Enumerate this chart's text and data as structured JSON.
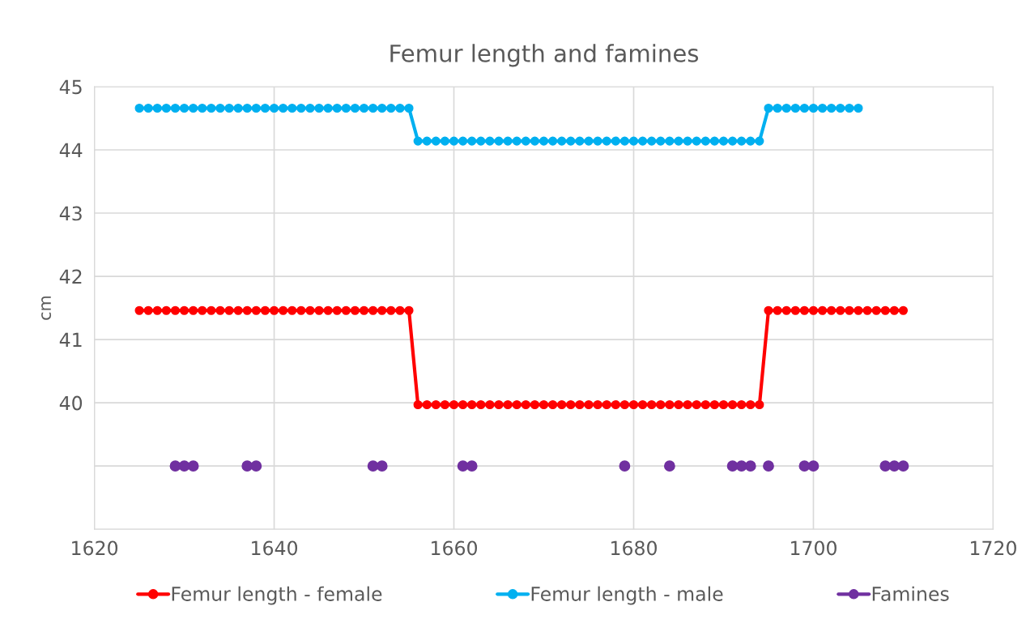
{
  "chart_data": {
    "type": "line",
    "title": "Femur length and famines",
    "ylabel": "cm",
    "xlim": [
      1620,
      1720
    ],
    "xticks": [
      1620,
      1640,
      1660,
      1680,
      1700,
      1720
    ],
    "ylim": [
      38,
      45
    ],
    "yticks": [
      {
        "value": 38,
        "label": null
      },
      {
        "value": 39,
        "label": null
      },
      40,
      41,
      42,
      43,
      44,
      45
    ],
    "grid": true,
    "legend": "bottom",
    "marker": "circle",
    "series": [
      {
        "name": "Femur length - female",
        "color": "#ff0000",
        "x": [
          1625,
          1626,
          1627,
          1628,
          1629,
          1630,
          1631,
          1632,
          1633,
          1634,
          1635,
          1636,
          1637,
          1638,
          1639,
          1640,
          1641,
          1642,
          1643,
          1644,
          1645,
          1646,
          1647,
          1648,
          1649,
          1650,
          1651,
          1652,
          1653,
          1654,
          1655,
          1656,
          1657,
          1658,
          1659,
          1660,
          1661,
          1662,
          1663,
          1664,
          1665,
          1666,
          1667,
          1668,
          1669,
          1670,
          1671,
          1672,
          1673,
          1674,
          1675,
          1676,
          1677,
          1678,
          1679,
          1680,
          1681,
          1682,
          1683,
          1684,
          1685,
          1686,
          1687,
          1688,
          1689,
          1690,
          1691,
          1692,
          1693,
          1694,
          1695,
          1696,
          1697,
          1698,
          1699,
          1700,
          1701,
          1702,
          1703,
          1704,
          1705,
          1706,
          1707,
          1708,
          1709,
          1710
        ],
        "values": [
          41.46,
          41.46,
          41.46,
          41.46,
          41.46,
          41.46,
          41.46,
          41.46,
          41.46,
          41.46,
          41.46,
          41.46,
          41.46,
          41.46,
          41.46,
          41.46,
          41.46,
          41.46,
          41.46,
          41.46,
          41.46,
          41.46,
          41.46,
          41.46,
          41.46,
          41.46,
          41.46,
          41.46,
          41.46,
          41.46,
          41.46,
          39.97,
          39.97,
          39.97,
          39.97,
          39.97,
          39.97,
          39.97,
          39.97,
          39.97,
          39.97,
          39.97,
          39.97,
          39.97,
          39.97,
          39.97,
          39.97,
          39.97,
          39.97,
          39.97,
          39.97,
          39.97,
          39.97,
          39.97,
          39.97,
          39.97,
          39.97,
          39.97,
          39.97,
          39.97,
          39.97,
          39.97,
          39.97,
          39.97,
          39.97,
          39.97,
          39.97,
          39.97,
          39.97,
          39.97,
          41.46,
          41.46,
          41.46,
          41.46,
          41.46,
          41.46,
          41.46,
          41.46,
          41.46,
          41.46,
          41.46,
          41.46,
          41.46,
          41.46,
          41.46,
          41.46
        ]
      },
      {
        "name": "Femur length - male",
        "color": "#00b0f0",
        "x": [
          1625,
          1626,
          1627,
          1628,
          1629,
          1630,
          1631,
          1632,
          1633,
          1634,
          1635,
          1636,
          1637,
          1638,
          1639,
          1640,
          1641,
          1642,
          1643,
          1644,
          1645,
          1646,
          1647,
          1648,
          1649,
          1650,
          1651,
          1652,
          1653,
          1654,
          1655,
          1656,
          1657,
          1658,
          1659,
          1660,
          1661,
          1662,
          1663,
          1664,
          1665,
          1666,
          1667,
          1668,
          1669,
          1670,
          1671,
          1672,
          1673,
          1674,
          1675,
          1676,
          1677,
          1678,
          1679,
          1680,
          1681,
          1682,
          1683,
          1684,
          1685,
          1686,
          1687,
          1688,
          1689,
          1690,
          1691,
          1692,
          1693,
          1694,
          1695,
          1696,
          1697,
          1698,
          1699,
          1700,
          1701,
          1702,
          1703,
          1704,
          1705
        ],
        "values": [
          44.66,
          44.66,
          44.66,
          44.66,
          44.66,
          44.66,
          44.66,
          44.66,
          44.66,
          44.66,
          44.66,
          44.66,
          44.66,
          44.66,
          44.66,
          44.66,
          44.66,
          44.66,
          44.66,
          44.66,
          44.66,
          44.66,
          44.66,
          44.66,
          44.66,
          44.66,
          44.66,
          44.66,
          44.66,
          44.66,
          44.66,
          44.14,
          44.14,
          44.14,
          44.14,
          44.14,
          44.14,
          44.14,
          44.14,
          44.14,
          44.14,
          44.14,
          44.14,
          44.14,
          44.14,
          44.14,
          44.14,
          44.14,
          44.14,
          44.14,
          44.14,
          44.14,
          44.14,
          44.14,
          44.14,
          44.14,
          44.14,
          44.14,
          44.14,
          44.14,
          44.14,
          44.14,
          44.14,
          44.14,
          44.14,
          44.14,
          44.14,
          44.14,
          44.14,
          44.14,
          44.66,
          44.66,
          44.66,
          44.66,
          44.66,
          44.66,
          44.66,
          44.66,
          44.66,
          44.66,
          44.66
        ]
      },
      {
        "name": "Famines",
        "type": "scatter",
        "color": "#7030a0",
        "x": [
          1629,
          1630,
          1631,
          1637,
          1638,
          1651,
          1652,
          1661,
          1662,
          1679,
          1684,
          1691,
          1692,
          1693,
          1695,
          1699,
          1700,
          1708,
          1709,
          1710
        ],
        "values": [
          39,
          39,
          39,
          39,
          39,
          39,
          39,
          39,
          39,
          39,
          39,
          39,
          39,
          39,
          39,
          39,
          39,
          39,
          39,
          39
        ]
      }
    ]
  }
}
